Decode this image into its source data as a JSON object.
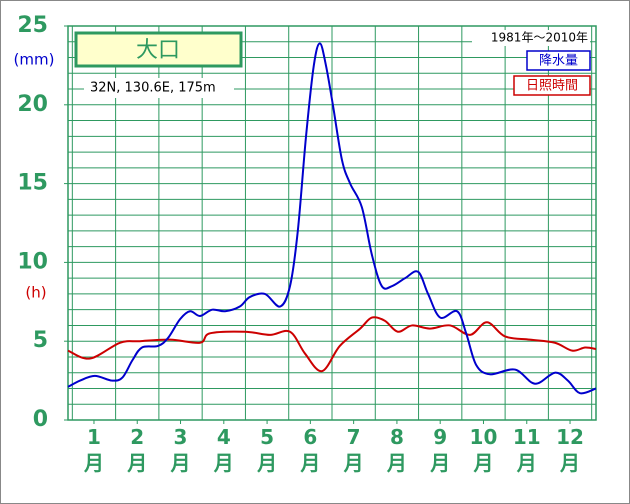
{
  "chart_data": {
    "type": "line",
    "title": "大口",
    "subtitle": "32N, 130.6E, 175m",
    "period": "1981年～2010年",
    "y_unit_labels": [
      {
        "text": "(mm)",
        "color": "#0000cc"
      },
      {
        "text": "(h)",
        "color": "#cc0000"
      }
    ],
    "xlim": [
      -0.1,
      12.1
    ],
    "xticks": [
      {
        "value": 0.5,
        "label": "1\n月"
      },
      {
        "value": 1.5,
        "label": "2\n月"
      },
      {
        "value": 2.5,
        "label": "3\n月"
      },
      {
        "value": 3.5,
        "label": "4\n月"
      },
      {
        "value": 4.5,
        "label": "5\n月"
      },
      {
        "value": 5.5,
        "label": "6\n月"
      },
      {
        "value": 6.5,
        "label": "7\n月"
      },
      {
        "value": 7.5,
        "label": "8\n月"
      },
      {
        "value": 8.5,
        "label": "9\n月"
      },
      {
        "value": 9.5,
        "label": "10\n月"
      },
      {
        "value": 10.5,
        "label": "11\n月"
      },
      {
        "value": 11.5,
        "label": "12\n月"
      }
    ],
    "xgrid": [
      0,
      1,
      2,
      3,
      4,
      5,
      6,
      7,
      8,
      9,
      10,
      11,
      12
    ],
    "ylim": [
      0,
      25
    ],
    "yticks": [
      0,
      5,
      10,
      15,
      20,
      25
    ],
    "ygrid": [
      1,
      2,
      3,
      4,
      5,
      6,
      7,
      8,
      9,
      10,
      11,
      12,
      13,
      14,
      15,
      16,
      17,
      18,
      19,
      20,
      21,
      22,
      23,
      24
    ],
    "grid": true,
    "series": [
      {
        "name": "降水量",
        "color": "#0000cc",
        "x": [
          -0.1,
          0.18,
          0.52,
          0.92,
          1.16,
          1.39,
          1.61,
          1.98,
          2.21,
          2.49,
          2.72,
          2.95,
          3.23,
          3.53,
          3.87,
          4.1,
          4.45,
          4.8,
          5.03,
          5.21,
          5.4,
          5.58,
          5.72,
          5.86,
          6.02,
          6.23,
          6.42,
          6.69,
          6.92,
          7.15,
          7.39,
          7.69,
          7.99,
          8.22,
          8.5,
          8.89,
          9.1,
          9.33,
          9.65,
          10.23,
          10.69,
          11.15,
          11.45,
          11.73,
          12.1
        ],
        "values": [
          2.1,
          2.5,
          2.8,
          2.5,
          2.7,
          3.8,
          4.6,
          4.7,
          5.2,
          6.4,
          6.9,
          6.6,
          7.0,
          6.9,
          7.2,
          7.8,
          8.0,
          7.2,
          8.5,
          12.0,
          18.0,
          22.5,
          23.9,
          22.5,
          20.0,
          16.5,
          15.0,
          13.5,
          10.5,
          8.5,
          8.5,
          9.0,
          9.4,
          8.0,
          6.5,
          6.9,
          5.5,
          3.5,
          2.9,
          3.2,
          2.3,
          3.0,
          2.5,
          1.7,
          2.0
        ]
      },
      {
        "name": "日照時間",
        "color": "#cc0000",
        "x": [
          -0.1,
          0.41,
          1.1,
          1.56,
          2.26,
          2.95,
          3.18,
          3.99,
          4.57,
          5.03,
          5.38,
          5.77,
          6.18,
          6.65,
          6.92,
          7.22,
          7.52,
          7.85,
          8.26,
          8.73,
          9.19,
          9.58,
          10.0,
          10.57,
          11.15,
          11.55,
          11.85,
          12.1
        ],
        "values": [
          4.4,
          3.9,
          4.9,
          5.0,
          5.1,
          4.9,
          5.5,
          5.6,
          5.4,
          5.6,
          4.2,
          3.1,
          4.7,
          5.8,
          6.5,
          6.3,
          5.6,
          6.0,
          5.8,
          6.0,
          5.4,
          6.2,
          5.3,
          5.1,
          4.9,
          4.4,
          4.6,
          4.5
        ]
      }
    ]
  }
}
